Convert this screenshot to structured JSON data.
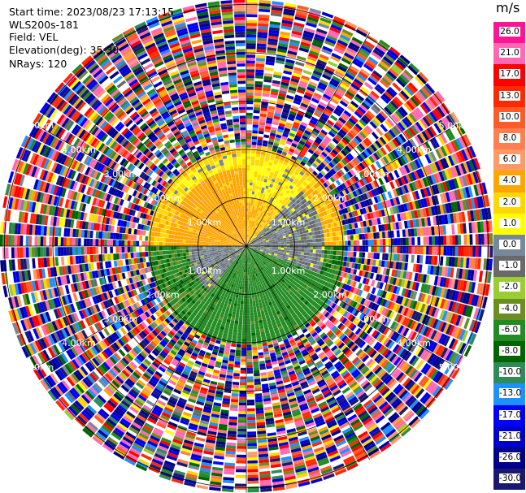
{
  "header": {
    "start_time": "Start time: 2023/08/23 17:13:15",
    "instrument": "WLS200s-181",
    "field": "Field: VEL",
    "elevation": "Elevation(deg): 35.30",
    "nrays": "NRays: 120"
  },
  "colorbar": {
    "unit": "m/s",
    "labels": [
      "26.0",
      "21.0",
      "17.0",
      "13.0",
      "10.0",
      "8.0",
      "6.0",
      "4.0",
      "2.0",
      "1.0",
      "0.0",
      "-1.0",
      "-2.0",
      "-4.0",
      "-6.0",
      "-8.0",
      "-10.0",
      "-13.0",
      "-17.0",
      "-21.0",
      "-26.0",
      "-30.0"
    ],
    "colors": [
      "#ff1493",
      "#ff69b4",
      "#ff0000",
      "#ff2a00",
      "#ff5a2a",
      "#ff7f50",
      "#ff9a66",
      "#ffa500",
      "#ffd700",
      "#ffff00",
      "#778899",
      "#696969",
      "#9acd32",
      "#6b8e23",
      "#228b22",
      "#006400",
      "#2e8b57",
      "#1e90ff",
      "#0000ff",
      "#0000cd",
      "#00008b",
      "#191970"
    ]
  },
  "chart_data": {
    "type": "ppi",
    "field": "VEL",
    "unit": "m/s",
    "nrays": 120,
    "elevation_deg": 35.3,
    "range_rings_km": [
      1.0,
      2.0,
      3.0,
      4.0,
      5.0
    ],
    "range_ring_labels": [
      "1.00km",
      "2.00km",
      "3.00km",
      "4.00km",
      "5.00km"
    ],
    "max_range_km": 5.1,
    "grid": true,
    "spokes_deg": [
      0,
      30,
      60,
      90,
      120,
      150,
      180,
      210,
      240,
      270,
      300,
      330
    ],
    "velocity_regions": [
      {
        "description": "positive (receding) near field",
        "azimuth_range_deg": [
          270,
          360
        ],
        "range_km": [
          0,
          1.6
        ],
        "value_ms": 5.0
      },
      {
        "description": "strong positive north",
        "azimuth_range_deg": [
          300,
          45
        ],
        "range_km": [
          1.0,
          1.9
        ],
        "value_ms": 2.0
      },
      {
        "description": "near-zero east",
        "azimuth_range_deg": [
          45,
          110
        ],
        "range_km": [
          0,
          1.6
        ],
        "value_ms": 0.0
      },
      {
        "description": "negative (approaching) south-east",
        "azimuth_range_deg": [
          110,
          220
        ],
        "range_km": [
          0,
          2.0
        ],
        "value_ms": -5.0
      },
      {
        "description": "near-zero south-west",
        "azimuth_range_deg": [
          220,
          270
        ],
        "range_km": [
          0,
          1.2
        ],
        "value_ms": 0.0
      }
    ],
    "noise_range_km": [
      2.0,
      5.1
    ],
    "colorbar_min": -30.0,
    "colorbar_max": 26.0
  }
}
